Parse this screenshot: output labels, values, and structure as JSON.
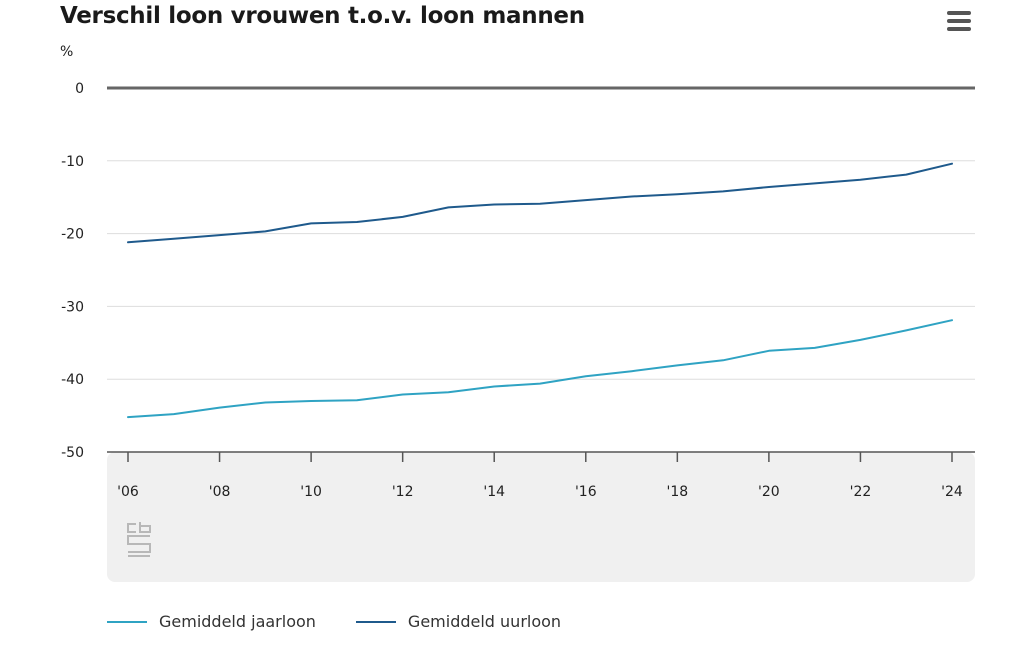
{
  "header": {
    "title": "Verschil loon vrouwen t.o.v. loon mannen",
    "menu_icon": "hamburger-menu-icon"
  },
  "colors": {
    "jaarloon": "#2fa3c3",
    "uurloon": "#1f5a8c",
    "zero_line": "#666666",
    "grid": "#dddddd",
    "footer_bg": "#f0f0f0"
  },
  "chart_data": {
    "type": "line",
    "ylabel": "%",
    "ylim": [
      -50,
      0
    ],
    "yticks": [
      0,
      -10,
      -20,
      -30,
      -40,
      -50
    ],
    "x": [
      2006,
      2007,
      2008,
      2009,
      2010,
      2011,
      2012,
      2013,
      2014,
      2015,
      2016,
      2017,
      2018,
      2019,
      2020,
      2021,
      2022,
      2023,
      2024
    ],
    "xticks": [
      2006,
      2008,
      2010,
      2012,
      2014,
      2016,
      2018,
      2020,
      2022,
      2024
    ],
    "xtick_labels": [
      "'06",
      "'08",
      "'10",
      "'12",
      "'14",
      "'16",
      "'18",
      "'20",
      "'22",
      "'24"
    ],
    "series": [
      {
        "name": "Gemiddeld jaarloon",
        "key": "jaarloon",
        "values": [
          -45.2,
          -44.8,
          -43.9,
          -43.2,
          -43.0,
          -42.9,
          -42.1,
          -41.8,
          -41.0,
          -40.6,
          -39.6,
          -38.9,
          -38.1,
          -37.4,
          -36.1,
          -35.7,
          -34.6,
          -33.3,
          -31.9
        ]
      },
      {
        "name": "Gemiddeld uurloon",
        "key": "uurloon",
        "values": [
          -21.2,
          -20.7,
          -20.2,
          -19.7,
          -18.6,
          -18.4,
          -17.7,
          -16.4,
          -16.0,
          -15.9,
          -15.4,
          -14.9,
          -14.6,
          -14.2,
          -13.6,
          -13.1,
          -12.6,
          -11.9,
          -10.4
        ]
      }
    ],
    "legend_position": "bottom-left",
    "grid": true
  },
  "footer": {
    "logo": "cbs-logo-icon"
  }
}
